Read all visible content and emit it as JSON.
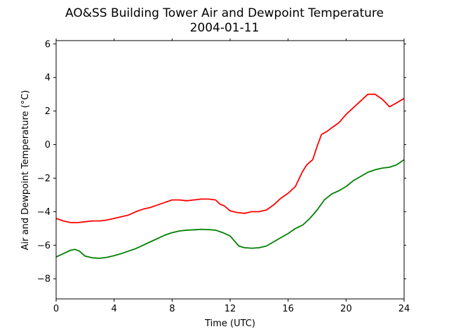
{
  "chart_data": {
    "type": "line",
    "title": "AO&SS Building Tower Air and Dewpoint Temperature",
    "subtitle": "2004-01-11",
    "xlabel": "Time (UTC)",
    "ylabel": "Air and Dewpoint Temperature (°C)",
    "xlim": [
      0,
      24
    ],
    "ylim": [
      -9.2,
      6.2
    ],
    "xticks": [
      0,
      4,
      8,
      12,
      16,
      20,
      24
    ],
    "yticks": [
      -8,
      -6,
      -4,
      -2,
      0,
      2,
      4,
      6
    ],
    "grid": false,
    "legend": "none",
    "series": [
      {
        "color": "#ff0000",
        "x": [
          0,
          0.5,
          1,
          1.5,
          2,
          2.5,
          3,
          3.5,
          4,
          4.5,
          5,
          5.5,
          6,
          6.5,
          7,
          7.5,
          8,
          8.5,
          9,
          9.5,
          10,
          10.5,
          11,
          11.3,
          11.6,
          12,
          12.5,
          13,
          13.5,
          14,
          14.5,
          15,
          15.5,
          16,
          16.5,
          17,
          17.3,
          17.7,
          18,
          18.3,
          18.7,
          19,
          19.5,
          20,
          20.5,
          21,
          21.5,
          22,
          22.5,
          23,
          23.5,
          24
        ],
        "y": [
          -4.4,
          -4.55,
          -4.65,
          -4.65,
          -4.6,
          -4.55,
          -4.55,
          -4.5,
          -4.4,
          -4.3,
          -4.2,
          -4.0,
          -3.85,
          -3.75,
          -3.6,
          -3.45,
          -3.3,
          -3.3,
          -3.35,
          -3.3,
          -3.25,
          -3.25,
          -3.3,
          -3.55,
          -3.65,
          -3.95,
          -4.05,
          -4.1,
          -4.0,
          -4.0,
          -3.9,
          -3.6,
          -3.2,
          -2.9,
          -2.5,
          -1.6,
          -1.2,
          -0.9,
          -0.1,
          0.6,
          0.8,
          1.0,
          1.3,
          1.8,
          2.2,
          2.6,
          3.0,
          3.0,
          2.7,
          2.25,
          2.5,
          2.75
        ]
      },
      {
        "color": "#008000",
        "x": [
          0,
          0.5,
          1,
          1.3,
          1.6,
          2,
          2.5,
          3,
          3.5,
          4,
          4.5,
          5,
          5.5,
          6,
          6.5,
          7,
          7.5,
          8,
          8.5,
          9,
          9.5,
          10,
          10.5,
          11,
          11.5,
          12,
          12.3,
          12.6,
          13,
          13.5,
          14,
          14.5,
          15,
          15.5,
          16,
          16.5,
          17,
          17.5,
          18,
          18.5,
          19,
          19.5,
          20,
          20.5,
          21,
          21.5,
          22,
          22.5,
          23,
          23.5,
          24
        ],
        "y": [
          -6.7,
          -6.5,
          -6.3,
          -6.25,
          -6.35,
          -6.65,
          -6.75,
          -6.78,
          -6.72,
          -6.62,
          -6.5,
          -6.35,
          -6.2,
          -6.0,
          -5.8,
          -5.6,
          -5.4,
          -5.25,
          -5.15,
          -5.1,
          -5.08,
          -5.05,
          -5.07,
          -5.1,
          -5.25,
          -5.45,
          -5.75,
          -6.05,
          -6.15,
          -6.18,
          -6.15,
          -6.05,
          -5.8,
          -5.55,
          -5.3,
          -5.0,
          -4.8,
          -4.4,
          -3.9,
          -3.3,
          -2.95,
          -2.75,
          -2.5,
          -2.15,
          -1.9,
          -1.65,
          -1.5,
          -1.4,
          -1.35,
          -1.2,
          -0.9
        ]
      }
    ]
  }
}
